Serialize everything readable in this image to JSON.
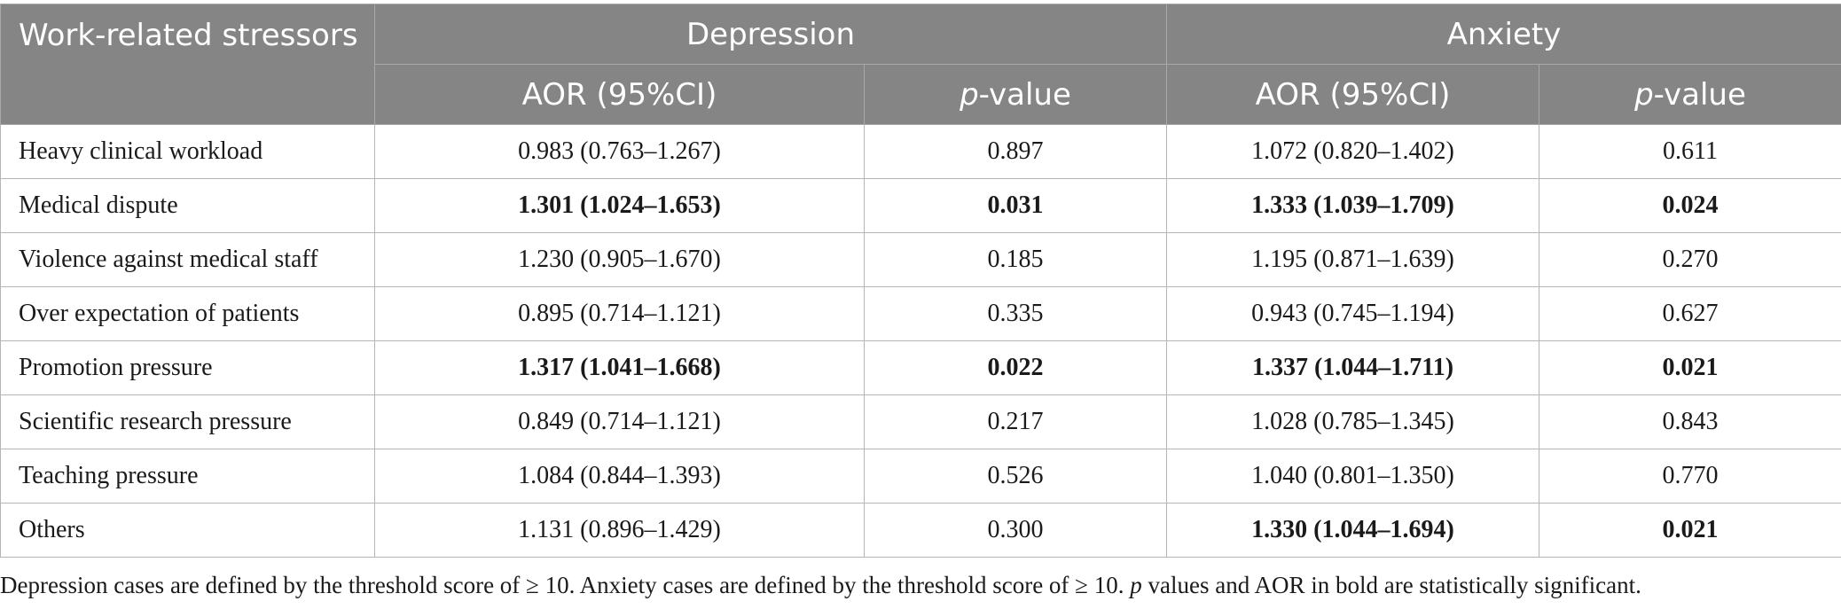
{
  "header": {
    "stressor_col": "Work-related stressors",
    "group1": "Depression",
    "group2": "Anxiety",
    "aor_label": "AOR (95%CI)",
    "p_letter": "p",
    "p_suffix": "-value"
  },
  "rows": [
    {
      "stressor": "Heavy clinical workload",
      "dep_aor": "0.983 (0.763–1.267)",
      "dep_p": "0.897",
      "anx_aor": "1.072 (0.820–1.402)",
      "anx_p": "0.611",
      "dep_sig": false,
      "anx_sig": false
    },
    {
      "stressor": "Medical dispute",
      "dep_aor": "1.301 (1.024–1.653)",
      "dep_p": "0.031",
      "anx_aor": "1.333 (1.039–1.709)",
      "anx_p": "0.024",
      "dep_sig": true,
      "anx_sig": true
    },
    {
      "stressor": "Violence against medical staff",
      "dep_aor": "1.230 (0.905–1.670)",
      "dep_p": "0.185",
      "anx_aor": "1.195 (0.871–1.639)",
      "anx_p": "0.270",
      "dep_sig": false,
      "anx_sig": false
    },
    {
      "stressor": "Over expectation of patients",
      "dep_aor": "0.895 (0.714–1.121)",
      "dep_p": "0.335",
      "anx_aor": "0.943 (0.745–1.194)",
      "anx_p": "0.627",
      "dep_sig": false,
      "anx_sig": false
    },
    {
      "stressor": "Promotion pressure",
      "dep_aor": "1.317 (1.041–1.668)",
      "dep_p": "0.022",
      "anx_aor": "1.337 (1.044–1.711)",
      "anx_p": "0.021",
      "dep_sig": true,
      "anx_sig": true
    },
    {
      "stressor": "Scientific research pressure",
      "dep_aor": "0.849 (0.714–1.121)",
      "dep_p": "0.217",
      "anx_aor": "1.028 (0.785–1.345)",
      "anx_p": "0.843",
      "dep_sig": false,
      "anx_sig": false
    },
    {
      "stressor": "Teaching pressure",
      "dep_aor": "1.084 (0.844–1.393)",
      "dep_p": "0.526",
      "anx_aor": "1.040 (0.801–1.350)",
      "anx_p": "0.770",
      "dep_sig": false,
      "anx_sig": false
    },
    {
      "stressor": "Others",
      "dep_aor": "1.131 (0.896–1.429)",
      "dep_p": "0.300",
      "anx_aor": "1.330 (1.044–1.694)",
      "anx_p": "0.021",
      "dep_sig": false,
      "anx_sig": true
    }
  ],
  "footnote": {
    "part1": "Depression cases are defined by the threshold score of ≥ 10. Anxiety cases are defined by the threshold score of ≥ 10. ",
    "p_letter": "p",
    "part2": " values and AOR in bold are statistically significant."
  }
}
